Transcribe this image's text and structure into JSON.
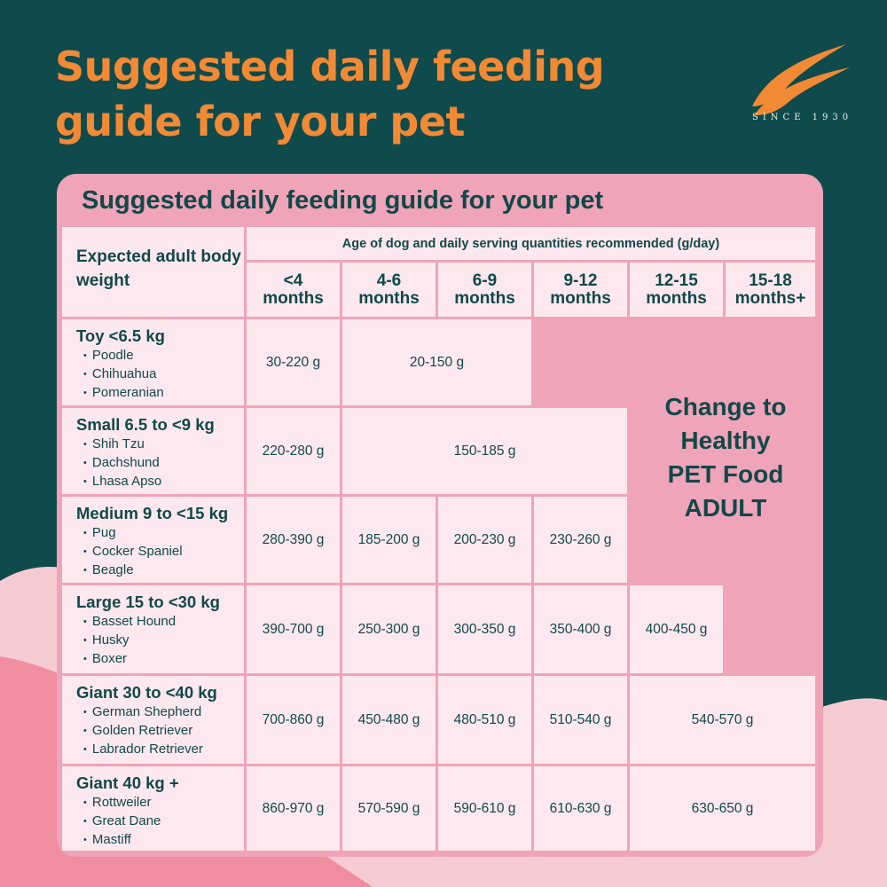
{
  "colors": {
    "background": "#0f4a4c",
    "accent": "#f28a35",
    "card": "#efa4b9",
    "cell": "#fde8ef",
    "text": "#114848"
  },
  "header": {
    "title": "Suggested daily feeding guide for your pet",
    "since": "SINCE 1930",
    "logo_icon": "wing-logo-icon"
  },
  "card": {
    "title": "Suggested daily feeding guide for your pet"
  },
  "table": {
    "weight_header": "Expected adult body weight",
    "age_header": "Age of dog and daily serving quantities recommended (g/day)",
    "age_columns": [
      "<4\nmonths",
      "4-6\nmonths",
      "6-9\nmonths",
      "9-12\nmonths",
      "12-15\nmonths",
      "15-18\nmonths+"
    ],
    "rows": [
      {
        "category": "Toy <6.5 kg",
        "breeds": [
          "Poodle",
          "Chihuahua",
          "Pomeranian"
        ],
        "values": [
          {
            "text": "30-220 g",
            "span": 1
          },
          {
            "text": "20-150 g",
            "span": 2
          }
        ]
      },
      {
        "category": "Small 6.5 to <9 kg",
        "breeds": [
          "Shih Tzu",
          "Dachshund",
          "Lhasa Apso"
        ],
        "values": [
          {
            "text": "220-280 g",
            "span": 1
          },
          {
            "text": "150-185 g",
            "span": 3
          }
        ]
      },
      {
        "category": "Medium 9 to <15 kg",
        "breeds": [
          "Pug",
          "Cocker Spaniel",
          "Beagle"
        ],
        "values": [
          {
            "text": "280-390 g",
            "span": 1
          },
          {
            "text": "185-200 g",
            "span": 1
          },
          {
            "text": "200-230 g",
            "span": 1
          },
          {
            "text": "230-260 g",
            "span": 1
          }
        ]
      },
      {
        "category": "Large 15 to <30 kg",
        "breeds": [
          "Basset Hound",
          "Husky",
          "Boxer"
        ],
        "values": [
          {
            "text": "390-700 g",
            "span": 1
          },
          {
            "text": "250-300 g",
            "span": 1
          },
          {
            "text": "300-350 g",
            "span": 1
          },
          {
            "text": "350-400 g",
            "span": 1
          },
          {
            "text": "400-450 g",
            "span": 1
          }
        ]
      },
      {
        "category": "Giant 30 to <40 kg",
        "breeds": [
          "German Shepherd",
          "Golden Retriever",
          "Labrador Retriever"
        ],
        "values": [
          {
            "text": "700-860 g",
            "span": 1
          },
          {
            "text": "450-480 g",
            "span": 1
          },
          {
            "text": "480-510 g",
            "span": 1
          },
          {
            "text": "510-540 g",
            "span": 1
          },
          {
            "text": "540-570 g",
            "span": 2
          }
        ]
      },
      {
        "category": "Giant 40 kg +",
        "breeds": [
          "Rottweiler",
          "Great Dane",
          "Mastiff"
        ],
        "values": [
          {
            "text": "860-970 g",
            "span": 1
          },
          {
            "text": "570-590 g",
            "span": 1
          },
          {
            "text": "590-610 g",
            "span": 1
          },
          {
            "text": "610-630 g",
            "span": 1
          },
          {
            "text": "630-650 g",
            "span": 2
          }
        ]
      }
    ]
  },
  "promo": {
    "lines": [
      "Change to",
      "Healthy",
      "PET Food",
      "ADULT"
    ]
  }
}
